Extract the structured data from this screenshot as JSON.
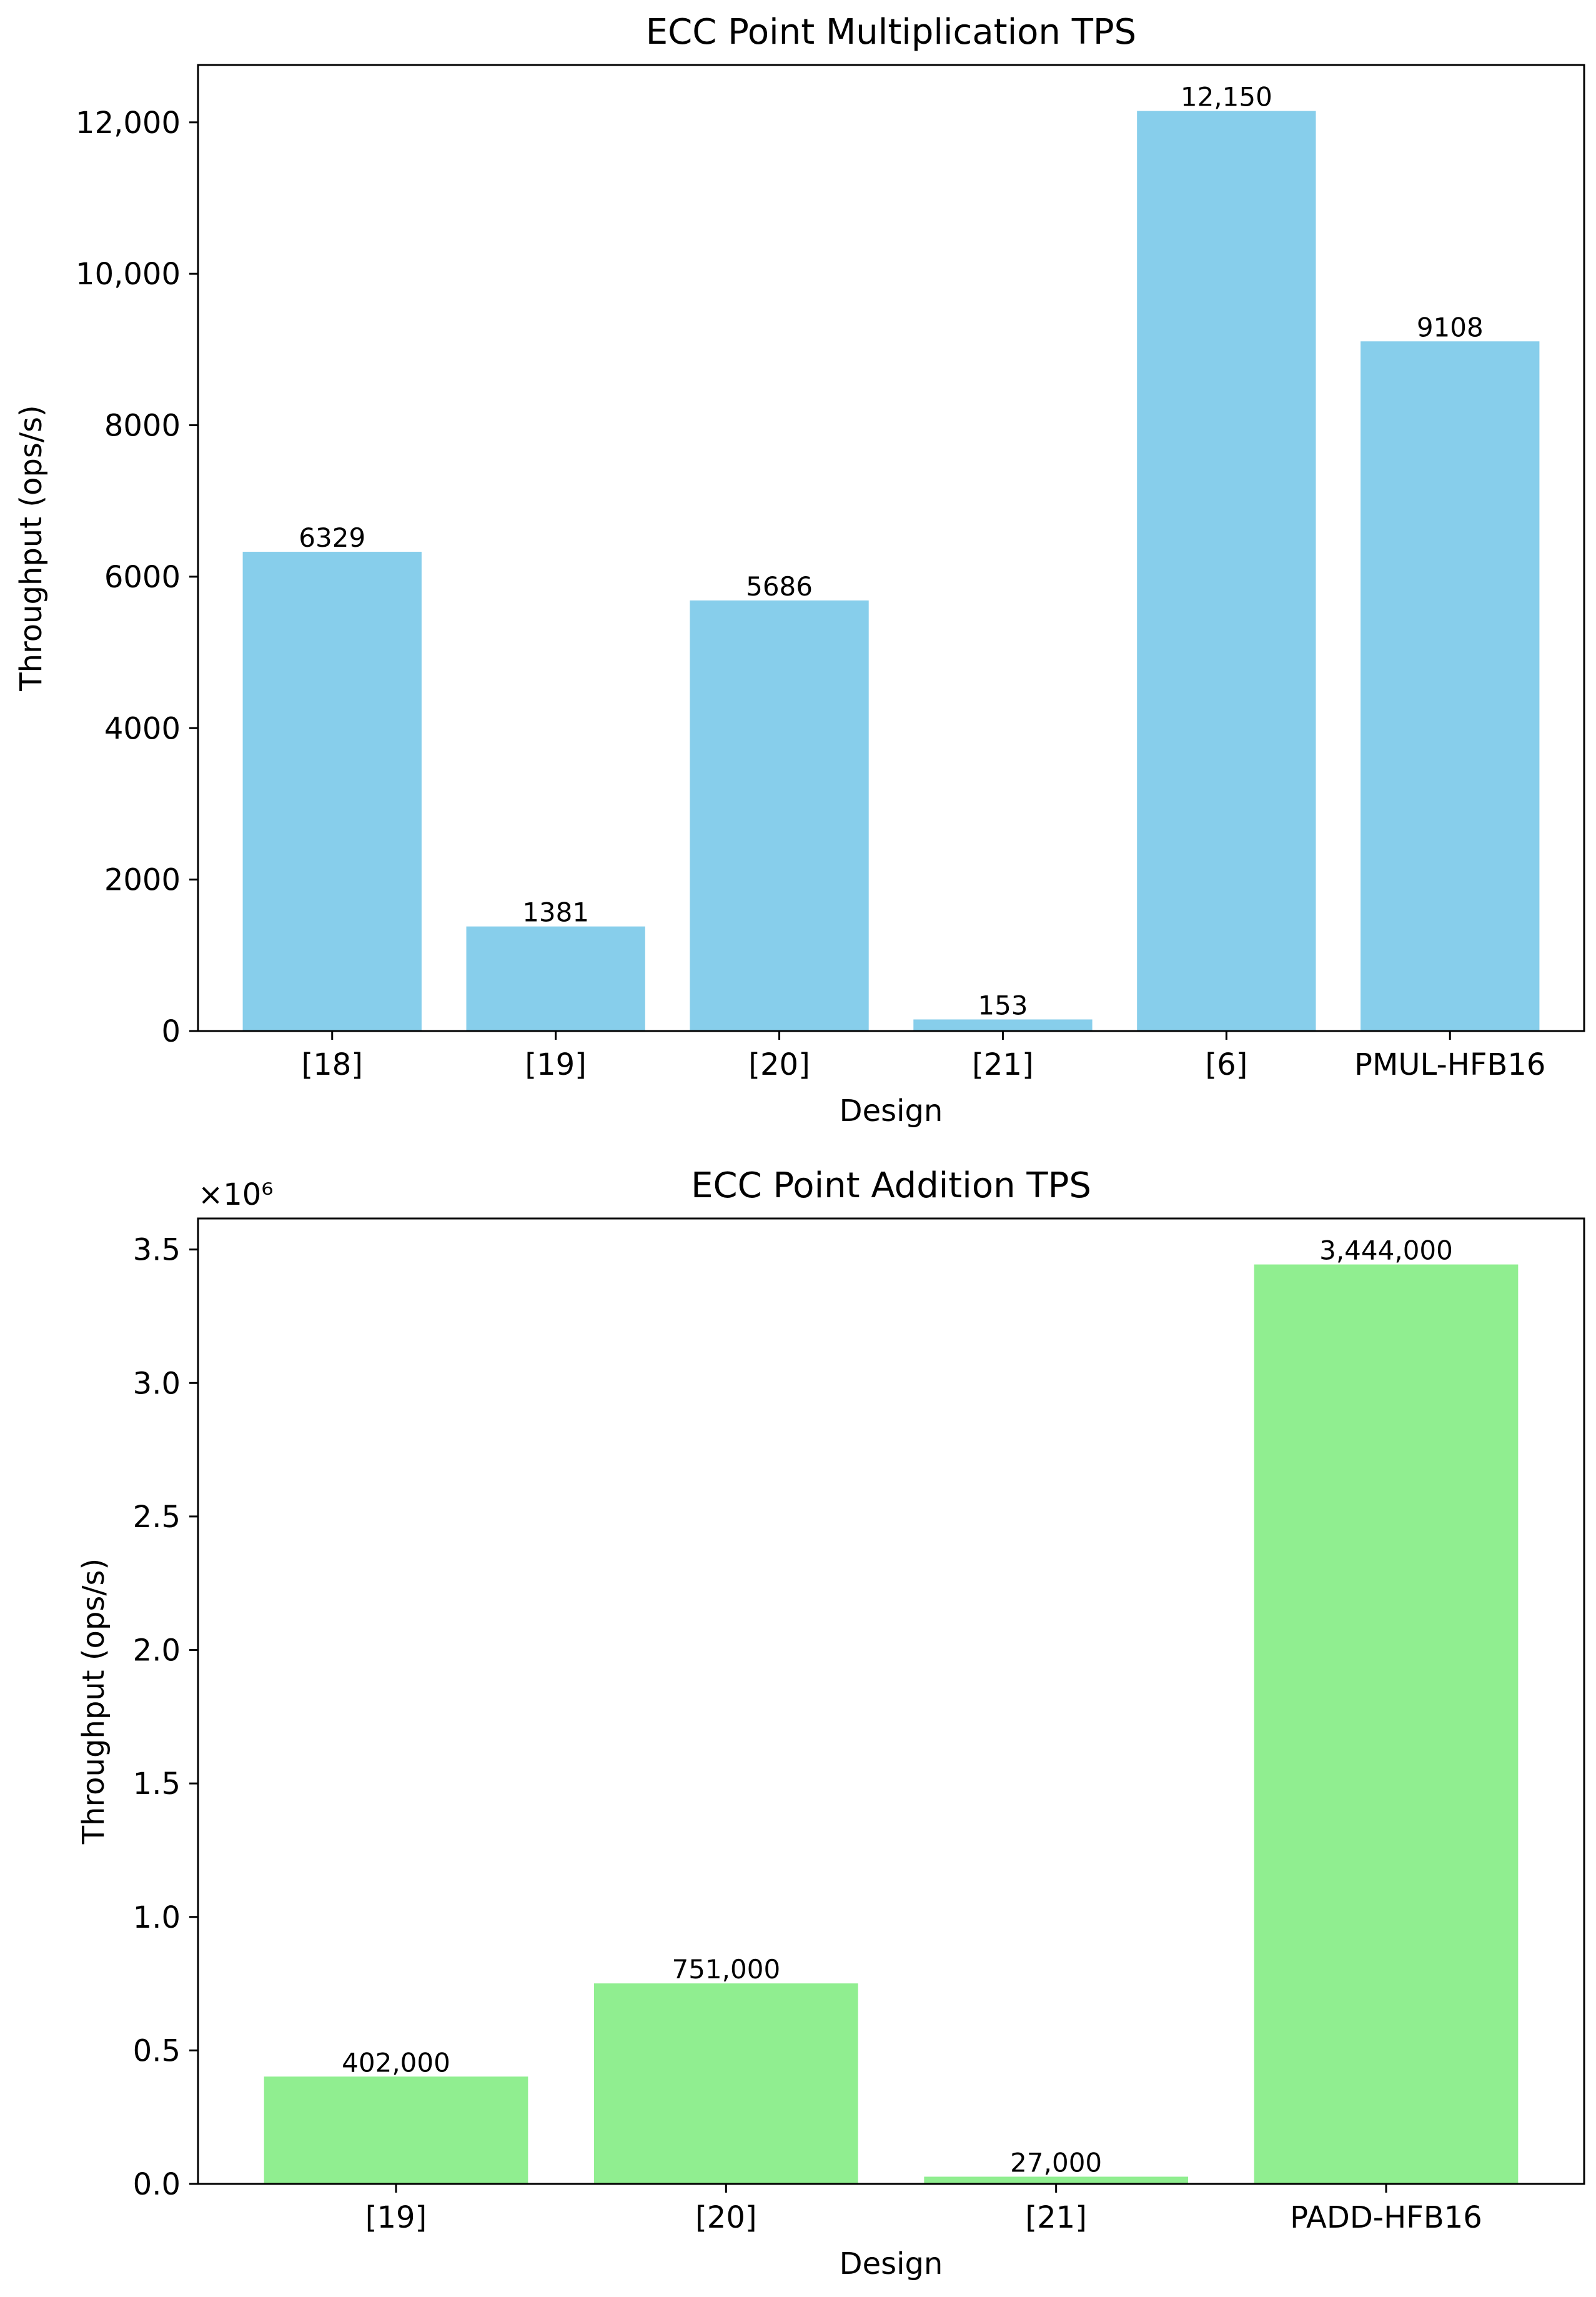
{
  "chart_data": [
    {
      "type": "bar",
      "title": "ECC Point Multiplication TPS",
      "xlabel": "Design",
      "ylabel": "Throughput (ops/s)",
      "categories": [
        "[18]",
        "[19]",
        "[20]",
        "[21]",
        "[6]",
        "PMUL-HFB16"
      ],
      "values": [
        6329,
        1381,
        5686,
        153,
        12150,
        9108
      ],
      "value_labels": [
        "6329",
        "1381",
        "5686",
        "153",
        "12,150",
        "9108"
      ],
      "ylim": [
        0,
        12757.5
      ],
      "yticks": [
        0,
        2000,
        4000,
        6000,
        8000,
        10000,
        12000
      ],
      "ytick_labels": [
        "0",
        "2000",
        "4000",
        "6000",
        "8000",
        "10,000",
        "12,000"
      ],
      "offset_label": "",
      "color": "#87CEEB",
      "grid": false
    },
    {
      "type": "bar",
      "title": "ECC Point Addition TPS",
      "xlabel": "Design",
      "ylabel": "Throughput (ops/s)",
      "categories": [
        "[19]",
        "[20]",
        "[21]",
        "PADD-HFB16"
      ],
      "values": [
        402000,
        751000,
        27000,
        3444000
      ],
      "value_labels": [
        "402,000",
        "751,000",
        "27,000",
        "3,444,000"
      ],
      "ylim": [
        0,
        3616200
      ],
      "yticks": [
        0,
        500000,
        1000000,
        1500000,
        2000000,
        2500000,
        3000000,
        3500000
      ],
      "ytick_labels": [
        "0.0",
        "0.5",
        "1.0",
        "1.5",
        "2.0",
        "2.5",
        "3.0",
        "3.5"
      ],
      "offset_label": "×10⁶",
      "color": "#90EE90",
      "grid": false
    }
  ]
}
